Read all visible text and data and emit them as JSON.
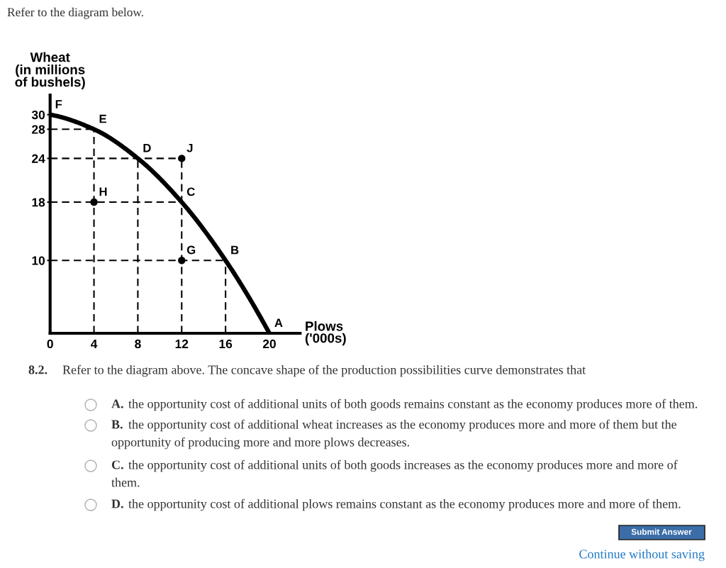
{
  "chart_data": {
    "type": "line",
    "title": "Refer to the diagram below.",
    "xlabel": "Plows\n('000s)",
    "ylabel": "Wheat\n(in millions\nof bushels)",
    "xlim": [
      0,
      22.8
    ],
    "ylim": [
      0,
      32.7
    ],
    "xticks": [
      0,
      4,
      8,
      12,
      16,
      20
    ],
    "yticks": [
      10,
      18,
      24,
      28,
      30
    ],
    "series": [
      {
        "color": "#000000",
        "line_style": "dashed",
        "marker": "none",
        "x": [
          0,
          4
        ],
        "values": [
          28,
          28
        ]
      },
      {
        "color": "#000000",
        "line_style": "dashed",
        "marker": "none",
        "x": [
          0,
          12
        ],
        "values": [
          24,
          24
        ]
      },
      {
        "color": "#000000",
        "line_style": "dashed",
        "marker": "none",
        "x": [
          0,
          12
        ],
        "values": [
          18,
          18
        ]
      },
      {
        "color": "#000000",
        "line_style": "dashed",
        "marker": "none",
        "x": [
          0,
          16
        ],
        "values": [
          10,
          10
        ]
      },
      {
        "color": "#000000",
        "line_style": "dashed",
        "marker": "none",
        "x": [
          4,
          4
        ],
        "values": [
          0,
          28
        ]
      },
      {
        "color": "#000000",
        "line_style": "dashed",
        "marker": "none",
        "x": [
          8,
          8
        ],
        "values": [
          0,
          24
        ]
      },
      {
        "color": "#000000",
        "line_style": "dashed",
        "marker": "none",
        "x": [
          12,
          12
        ],
        "values": [
          0,
          24
        ]
      },
      {
        "color": "#000000",
        "line_style": "dashed",
        "marker": "none",
        "x": [
          16,
          16
        ],
        "values": [
          0,
          10
        ]
      },
      {
        "color": "#000000",
        "line_style": "solid",
        "marker": "none",
        "x": [
          0,
          4,
          8,
          12,
          16,
          20
        ],
        "values": [
          30,
          28,
          24,
          18,
          10,
          0
        ]
      },
      {
        "type": "scatter",
        "color": "#000000",
        "marker": "circle",
        "x": [
          4,
          12,
          12
        ],
        "values": [
          18,
          24,
          10
        ]
      }
    ],
    "annotations": [
      {
        "text": "F",
        "x": 0,
        "y": 30
      },
      {
        "text": "E",
        "x": 4,
        "y": 28
      },
      {
        "text": "D",
        "x": 8,
        "y": 24
      },
      {
        "text": "J",
        "x": 12,
        "y": 24
      },
      {
        "text": "H",
        "x": 4,
        "y": 18
      },
      {
        "text": "C",
        "x": 12,
        "y": 18
      },
      {
        "text": "G",
        "x": 12,
        "y": 10
      },
      {
        "text": "B",
        "x": 16,
        "y": 10
      },
      {
        "text": "A",
        "x": 20,
        "y": 0
      },
      "8.2.",
      "Refer to the diagram above. The concave shape of the production possibilities curve demonstrates that",
      "A. the opportunity cost of additional units of both goods remains constant as the economy produces more of them.",
      "B. the opportunity cost of additional wheat increases as the economy produces more and more of them but the\nopportunity of producing more and more plows decreases.",
      "C. the opportunity cost of additional units of both goods increases as the economy produces more and more of\nthem.",
      "D. the opportunity cost of additional plows remains constant as the economy produces more and more of them.",
      "Submit Answer",
      "Continue without saving"
    ]
  }
}
